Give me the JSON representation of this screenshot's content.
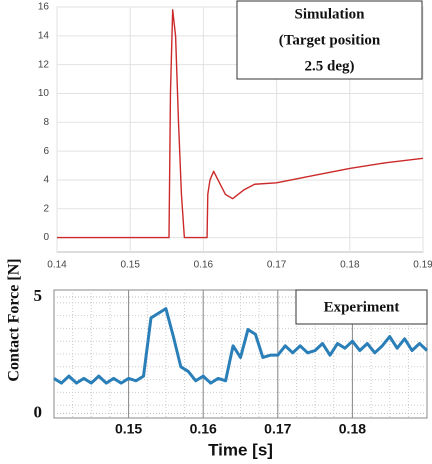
{
  "chart_data": [
    {
      "type": "line",
      "annotation": [
        "Simulation",
        "(Target position",
        "2.5 deg)"
      ],
      "x": [
        0.14,
        0.1553,
        0.1555,
        0.1558,
        0.1562,
        0.1566,
        0.157,
        0.1574,
        0.1605,
        0.1606,
        0.1609,
        0.1614,
        0.162,
        0.163,
        0.164,
        0.1655,
        0.167,
        0.17,
        0.175,
        0.18,
        0.185,
        0.19
      ],
      "series": [
        {
          "color": "#cc2a2a",
          "values": [
            0,
            0,
            10,
            15.8,
            14,
            8,
            3,
            0,
            0,
            3,
            4,
            4.6,
            4,
            3,
            2.7,
            3.3,
            3.7,
            3.8,
            4.3,
            4.8,
            5.2,
            5.5
          ]
        }
      ],
      "xlim": [
        0.14,
        0.19
      ],
      "xticks": [
        0.14,
        0.15,
        0.16,
        0.17,
        0.18,
        0.19
      ],
      "ylim": [
        -1,
        16
      ],
      "yticks": [
        0,
        2,
        4,
        6,
        8,
        10,
        12,
        14,
        16
      ],
      "grid": true
    },
    {
      "type": "line",
      "annotation": [
        "Experiment"
      ],
      "xlabel": "Time [s]",
      "ylabel": "Contact Force [N]",
      "x": [
        0.14,
        0.141,
        0.142,
        0.143,
        0.144,
        0.145,
        0.146,
        0.147,
        0.148,
        0.149,
        0.15,
        0.151,
        0.152,
        0.153,
        0.154,
        0.155,
        0.156,
        0.157,
        0.158,
        0.159,
        0.16,
        0.161,
        0.162,
        0.163,
        0.164,
        0.165,
        0.166,
        0.167,
        0.168,
        0.169,
        0.17,
        0.171,
        0.172,
        0.173,
        0.174,
        0.175,
        0.176,
        0.177,
        0.178,
        0.179,
        0.18,
        0.181,
        0.182,
        0.183,
        0.184,
        0.185,
        0.186,
        0.187,
        0.188,
        0.189,
        0.19
      ],
      "series": [
        {
          "color": "#2a7fb8",
          "values": [
            1.5,
            1.3,
            1.6,
            1.3,
            1.5,
            1.3,
            1.6,
            1.3,
            1.5,
            1.3,
            1.5,
            1.4,
            1.6,
            4.1,
            4.3,
            4.5,
            3.3,
            2.0,
            1.8,
            1.4,
            1.6,
            1.3,
            1.5,
            1.4,
            2.9,
            2.4,
            3.6,
            3.4,
            2.4,
            2.5,
            2.5,
            2.9,
            2.6,
            2.9,
            2.6,
            2.7,
            3.0,
            2.5,
            3.0,
            2.8,
            3.1,
            2.7,
            3.0,
            2.6,
            2.9,
            3.3,
            2.8,
            3.2,
            2.7,
            3.0,
            2.7
          ]
        }
      ],
      "xlim": [
        0.14,
        0.19
      ],
      "xticks": [
        0.15,
        0.16,
        0.17,
        0.18
      ],
      "ylim": [
        -0.2,
        5.3
      ],
      "yticks": [
        0,
        5
      ],
      "grid": true
    }
  ]
}
